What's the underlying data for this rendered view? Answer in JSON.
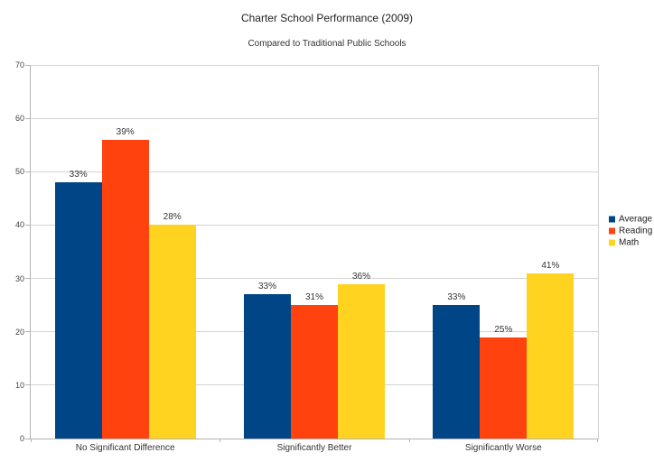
{
  "chart_data": {
    "type": "bar",
    "title": "Charter School Performance (2009)",
    "subtitle": "Compared to Traditional Public Schools",
    "categories": [
      "No Significant Difference",
      "Significantly Better",
      "Significantly Worse"
    ],
    "series": [
      {
        "name": "Average",
        "color": "#004586",
        "values": [
          48,
          27,
          25
        ],
        "point_labels": [
          "33%",
          "33%",
          "33%"
        ]
      },
      {
        "name": "Reading",
        "color": "#FF420E",
        "values": [
          56,
          25,
          19
        ],
        "point_labels": [
          "39%",
          "31%",
          "25%"
        ]
      },
      {
        "name": "Math",
        "color": "#FFD320",
        "values": [
          40,
          29,
          31
        ],
        "point_labels": [
          "28%",
          "36%",
          "41%"
        ]
      }
    ],
    "xlabel": "",
    "ylabel": "",
    "ylim": [
      0,
      70
    ],
    "yticks": [
      0,
      10,
      20,
      30,
      40,
      50,
      60,
      70
    ],
    "grid": true,
    "legend_position": "right-center",
    "colors": {
      "background": "#ffffff",
      "axis_line": "#b3b3b3",
      "gridline": "#d3d3d3",
      "text": "#333333"
    }
  }
}
